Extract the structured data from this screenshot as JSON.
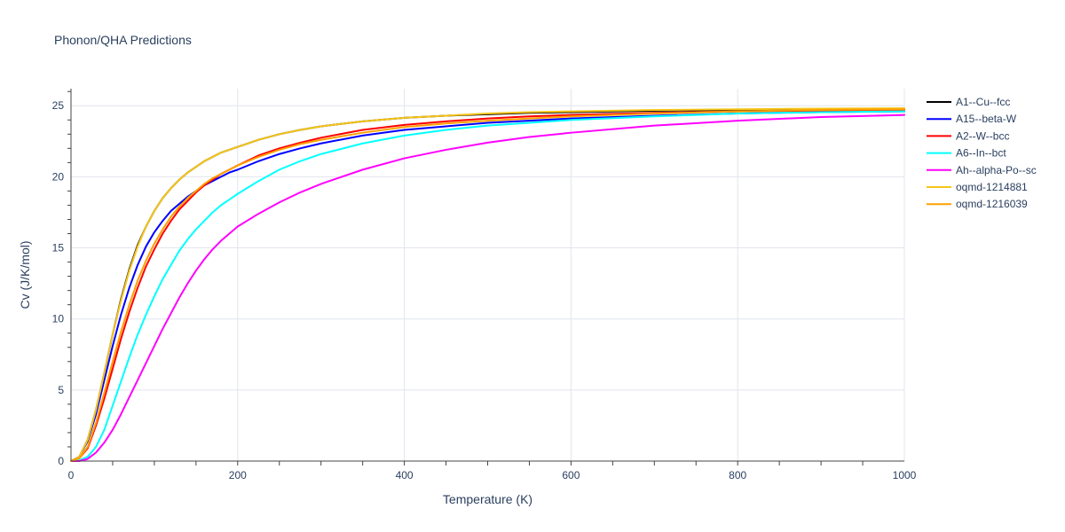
{
  "chart_data": {
    "type": "line",
    "title": "Phonon/QHA Predictions",
    "xlabel": "Temperature (K)",
    "ylabel": "Cv (J/K/mol)",
    "xlim": [
      0,
      1000
    ],
    "ylim": [
      0,
      26.2
    ],
    "xticks": [
      0,
      200,
      400,
      600,
      800,
      1000
    ],
    "xtick_labels": [
      "0",
      "200",
      "400",
      "600",
      "800",
      "1000"
    ],
    "yticks": [
      0,
      5,
      10,
      15,
      20,
      25
    ],
    "ytick_labels": [
      "0",
      "5",
      "10",
      "15",
      "20",
      "25"
    ],
    "grid": true,
    "legend_position": "right",
    "x": [
      0,
      10,
      20,
      30,
      40,
      50,
      60,
      70,
      80,
      90,
      100,
      110,
      120,
      130,
      140,
      150,
      160,
      170,
      180,
      190,
      200,
      225,
      250,
      275,
      300,
      350,
      400,
      450,
      500,
      550,
      600,
      700,
      800,
      900,
      1000
    ],
    "series": [
      {
        "name": "A1--Cu--fcc",
        "color": "#000000",
        "values": [
          0,
          0.3,
          1.5,
          3.6,
          6.2,
          8.9,
          11.4,
          13.5,
          15.2,
          16.5,
          17.6,
          18.5,
          19.2,
          19.8,
          20.3,
          20.7,
          21.1,
          21.4,
          21.7,
          21.9,
          22.1,
          22.6,
          23.0,
          23.3,
          23.55,
          23.9,
          24.15,
          24.3,
          24.4,
          24.5,
          24.55,
          24.65,
          24.7,
          24.75,
          24.78
        ]
      },
      {
        "name": "A15--beta-W",
        "color": "#0000ff",
        "values": [
          0,
          0.3,
          1.4,
          3.3,
          5.7,
          8.1,
          10.3,
          12.2,
          13.8,
          15.1,
          16.1,
          16.9,
          17.6,
          18.1,
          18.6,
          19.0,
          19.4,
          19.7,
          20.0,
          20.3,
          20.5,
          21.1,
          21.6,
          22.0,
          22.35,
          22.9,
          23.3,
          23.55,
          23.8,
          23.95,
          24.1,
          24.3,
          24.45,
          24.55,
          24.6
        ]
      },
      {
        "name": "A2--W--bcc",
        "color": "#ff0000",
        "values": [
          0,
          0.2,
          0.9,
          2.5,
          4.4,
          6.5,
          8.6,
          10.5,
          12.2,
          13.7,
          14.9,
          16.0,
          16.9,
          17.7,
          18.3,
          18.9,
          19.4,
          19.8,
          20.2,
          20.5,
          20.8,
          21.5,
          22.0,
          22.4,
          22.75,
          23.3,
          23.65,
          23.9,
          24.1,
          24.25,
          24.35,
          24.5,
          24.6,
          24.65,
          24.7
        ]
      },
      {
        "name": "A6--In--bct",
        "color": "#00ffff",
        "values": [
          0,
          0.05,
          0.3,
          1.0,
          2.2,
          3.9,
          5.6,
          7.3,
          8.9,
          10.3,
          11.6,
          12.8,
          13.8,
          14.8,
          15.6,
          16.3,
          16.9,
          17.5,
          18.0,
          18.4,
          18.8,
          19.7,
          20.5,
          21.1,
          21.6,
          22.35,
          22.9,
          23.3,
          23.6,
          23.8,
          24.0,
          24.25,
          24.45,
          24.55,
          24.6
        ]
      },
      {
        "name": "Ah--alpha-Po--sc",
        "color": "#ff00ff",
        "values": [
          0,
          0.0,
          0.15,
          0.6,
          1.3,
          2.2,
          3.3,
          4.5,
          5.7,
          6.9,
          8.1,
          9.3,
          10.4,
          11.5,
          12.5,
          13.4,
          14.2,
          14.9,
          15.5,
          16.0,
          16.5,
          17.4,
          18.2,
          18.9,
          19.5,
          20.5,
          21.3,
          21.9,
          22.4,
          22.8,
          23.1,
          23.6,
          23.95,
          24.2,
          24.35
        ]
      },
      {
        "name": "oqmd-1214881",
        "color": "#f5c518",
        "values": [
          0,
          0.3,
          1.5,
          3.6,
          6.2,
          8.9,
          11.3,
          13.4,
          15.1,
          16.5,
          17.6,
          18.5,
          19.2,
          19.8,
          20.3,
          20.7,
          21.1,
          21.4,
          21.7,
          21.9,
          22.1,
          22.6,
          23.0,
          23.3,
          23.55,
          23.9,
          24.15,
          24.3,
          24.45,
          24.55,
          24.6,
          24.7,
          24.75,
          24.8,
          24.82
        ]
      },
      {
        "name": "oqmd-1216039",
        "color": "#ff9f00",
        "values": [
          0,
          0.2,
          1.0,
          2.7,
          4.8,
          7.0,
          9.1,
          11.0,
          12.7,
          14.1,
          15.3,
          16.3,
          17.2,
          17.9,
          18.5,
          19.0,
          19.5,
          19.9,
          20.2,
          20.5,
          20.8,
          21.4,
          21.9,
          22.3,
          22.6,
          23.1,
          23.5,
          23.75,
          23.95,
          24.1,
          24.25,
          24.45,
          24.6,
          24.7,
          24.75
        ]
      }
    ]
  }
}
